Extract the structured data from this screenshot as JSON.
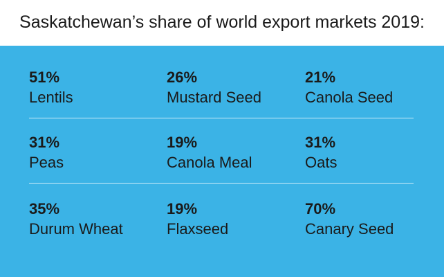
{
  "title": "Saskatchewan’s share of world export markets 2019:",
  "colors": {
    "panel": "#3bb3e6",
    "text": "#1a1a1a",
    "divider": "#ffffff"
  },
  "rows": [
    [
      {
        "pct": "51%",
        "label": "Lentils"
      },
      {
        "pct": "26%",
        "label": "Mustard Seed"
      },
      {
        "pct": "21%",
        "label": "Canola Seed"
      }
    ],
    [
      {
        "pct": "31%",
        "label": "Peas"
      },
      {
        "pct": "19%",
        "label": "Canola Meal"
      },
      {
        "pct": "31%",
        "label": "Oats"
      }
    ],
    [
      {
        "pct": "35%",
        "label": "Durum Wheat"
      },
      {
        "pct": "19%",
        "label": "Flaxseed"
      },
      {
        "pct": "70%",
        "label": "Canary Seed"
      }
    ]
  ]
}
